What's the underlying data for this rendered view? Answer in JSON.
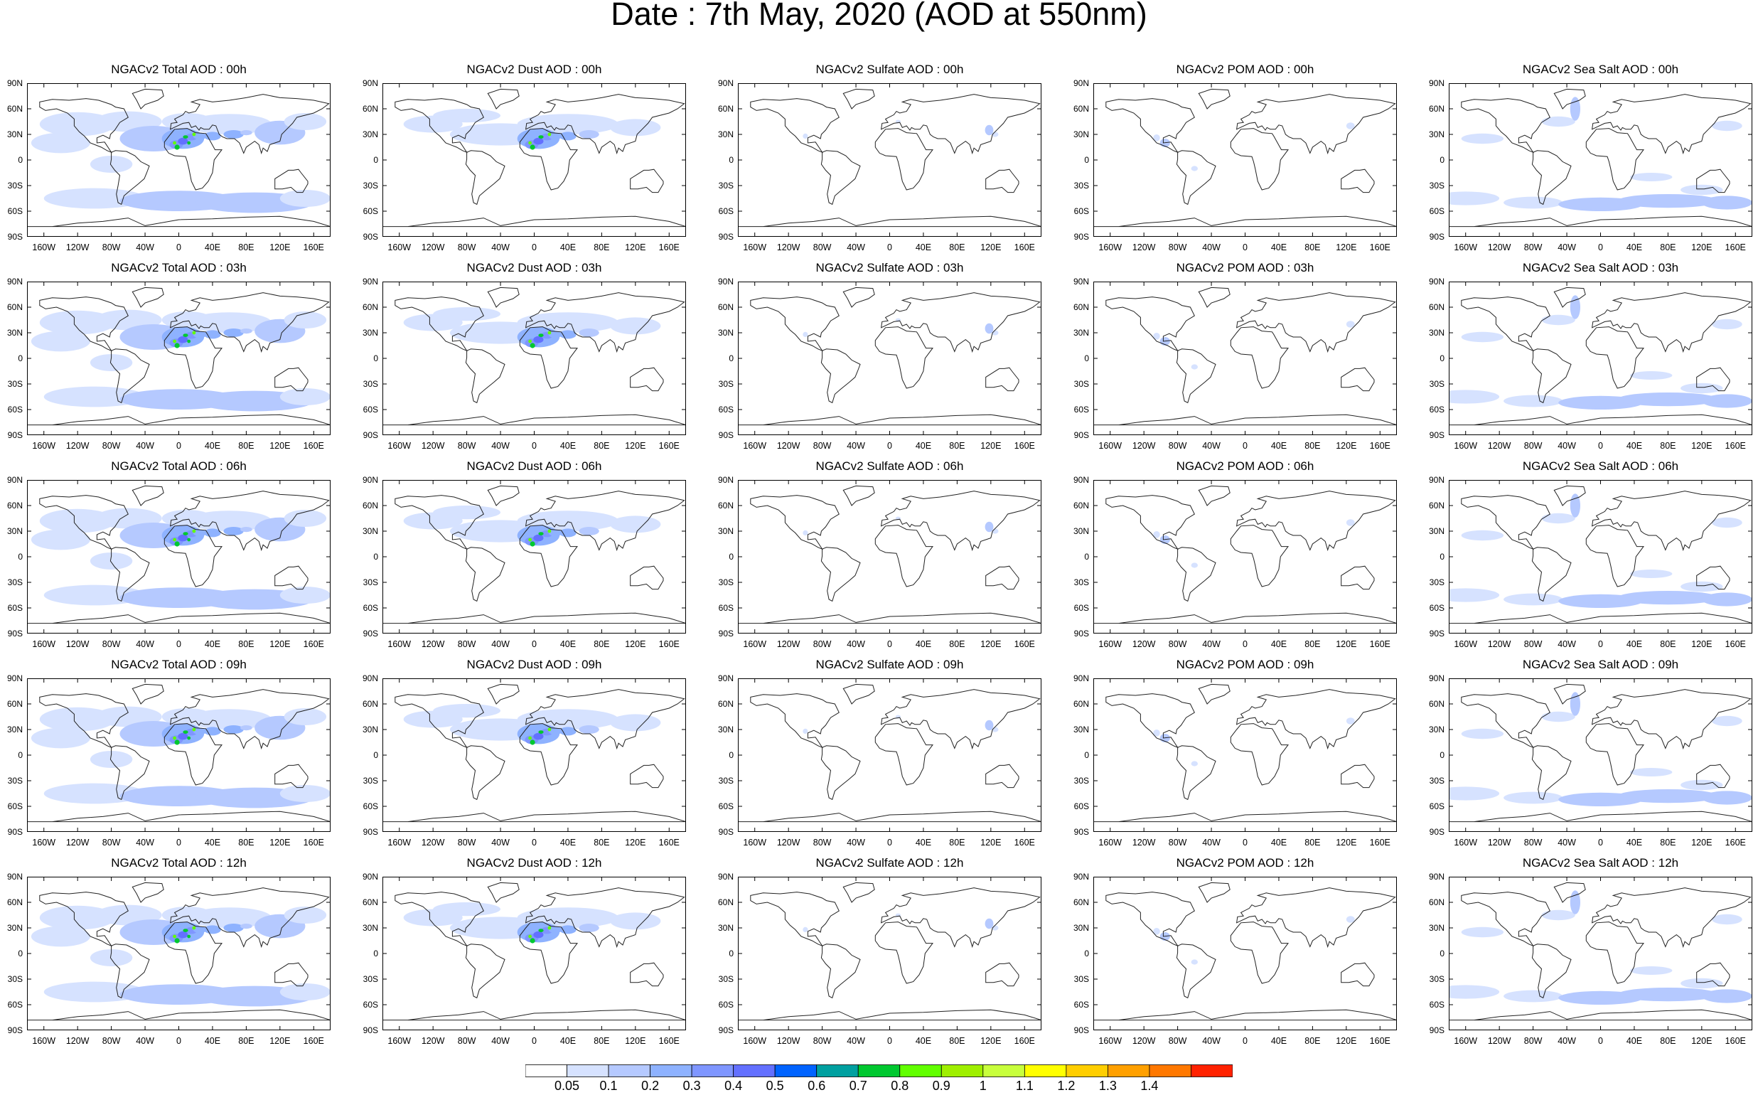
{
  "title": "Date : 7th May, 2020 (AOD at 550nm)",
  "panel_titles": [
    [
      "NGACv2 Total AOD : 00h",
      "NGACv2 Dust AOD : 00h",
      "NGACv2 Sulfate AOD : 00h",
      "NGACv2 POM AOD : 00h",
      "NGACv2 Sea Salt AOD : 00h"
    ],
    [
      "NGACv2 Total AOD : 03h",
      "NGACv2 Dust AOD : 03h",
      "NGACv2 Sulfate AOD : 03h",
      "NGACv2 POM AOD : 03h",
      "NGACv2 Sea Salt AOD : 03h"
    ],
    [
      "NGACv2 Total AOD : 06h",
      "NGACv2 Dust AOD : 06h",
      "NGACv2 Sulfate AOD : 06h",
      "NGACv2 POM AOD : 06h",
      "NGACv2 Sea Salt AOD : 06h"
    ],
    [
      "NGACv2 Total AOD : 09h",
      "NGACv2 Dust AOD : 09h",
      "NGACv2 Sulfate AOD : 09h",
      "NGACv2 POM AOD : 09h",
      "NGACv2 Sea Salt  AOD : 09h"
    ],
    [
      "NGACv2 Total AOD :  12h",
      "NGACv2 Dust AOD : 12h",
      "NGACv2 Sulfate AOD : 12h",
      "NGACv2 POM  AOD : 12h",
      "NGACv2 Sea Salt  AOD : 12h"
    ]
  ],
  "lat_ticks": [
    "90N",
    "60N",
    "30N",
    "0",
    "30S",
    "60S",
    "90S"
  ],
  "lon_ticks": [
    "160W",
    "120W",
    "80W",
    "40W",
    "0",
    "40E",
    "80E",
    "120E",
    "160E"
  ],
  "lon_tick_values": [
    -160,
    -120,
    -80,
    -40,
    0,
    40,
    80,
    120,
    160
  ],
  "lat_tick_values": [
    90,
    60,
    30,
    0,
    -30,
    -60,
    -90
  ],
  "colorbar": {
    "labels": [
      "0.05",
      "0.1",
      "0.2",
      "0.3",
      "0.4",
      "0.5",
      "0.6",
      "0.7",
      "0.8",
      "0.9",
      "1",
      "1.1",
      "1.2",
      "1.3",
      "1.4"
    ],
    "colors": [
      "#ffffff",
      "#d6e2ff",
      "#b5c9ff",
      "#8eb2ff",
      "#7f96ff",
      "#6370ff",
      "#0063ff",
      "#00a0a0",
      "#00c830",
      "#62ff00",
      "#9fef00",
      "#c8ff3c",
      "#ffff00",
      "#ffce00",
      "#ffa000",
      "#ff7800",
      "#ff2200"
    ]
  }
}
